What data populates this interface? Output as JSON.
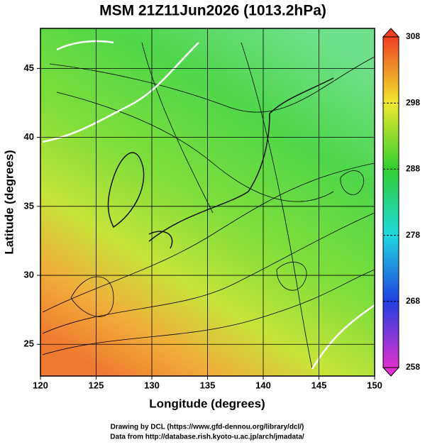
{
  "chart_data": {
    "type": "map",
    "title": "MSM 21Z11Jun2026 (1013.2hPa)",
    "xlabel": "Longitude (degrees)",
    "ylabel": "Latitude  (degrees)",
    "xlim": [
      120,
      150
    ],
    "xticks": [
      120,
      125,
      130,
      135,
      140,
      145,
      150
    ],
    "ylim": [
      22.7,
      47.9
    ],
    "yticks": [
      25,
      30,
      35,
      40,
      45
    ],
    "grid": true,
    "colorbar": {
      "lim": [
        258,
        308
      ],
      "ticks": [
        258,
        268,
        278,
        288,
        298,
        308
      ]
    }
  },
  "footer": [
    "Drawing by DCL (https://www.gfd-dennou.org/library/dcl/)",
    "Data from http://database.rish.kyoto-u.ac.jp/arch/jmadata/"
  ]
}
